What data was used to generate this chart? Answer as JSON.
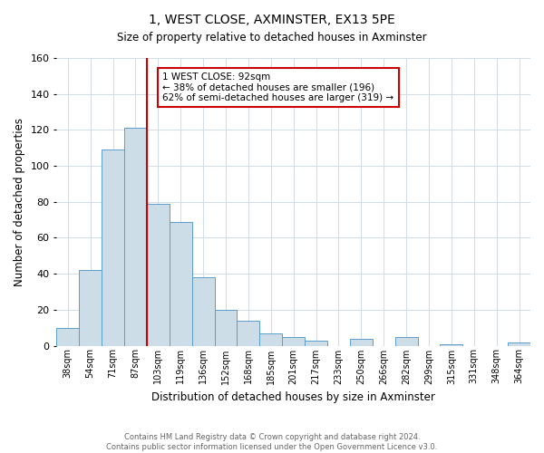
{
  "title": "1, WEST CLOSE, AXMINSTER, EX13 5PE",
  "subtitle": "Size of property relative to detached houses in Axminster",
  "xlabel": "Distribution of detached houses by size in Axminster",
  "ylabel": "Number of detached properties",
  "bar_labels": [
    "38sqm",
    "54sqm",
    "71sqm",
    "87sqm",
    "103sqm",
    "119sqm",
    "136sqm",
    "152sqm",
    "168sqm",
    "185sqm",
    "201sqm",
    "217sqm",
    "233sqm",
    "250sqm",
    "266sqm",
    "282sqm",
    "299sqm",
    "315sqm",
    "331sqm",
    "348sqm",
    "364sqm"
  ],
  "bar_values": [
    10,
    42,
    109,
    121,
    79,
    69,
    38,
    20,
    14,
    7,
    5,
    3,
    0,
    4,
    0,
    5,
    0,
    1,
    0,
    0,
    2
  ],
  "bar_color": "#ccdde8",
  "bar_edge_color": "#5a9ec9",
  "ylim": [
    0,
    160
  ],
  "yticks": [
    0,
    20,
    40,
    60,
    80,
    100,
    120,
    140,
    160
  ],
  "vline_x_idx": 3,
  "vline_color": "#cc0000",
  "annotation_title": "1 WEST CLOSE: 92sqm",
  "annotation_line1": "← 38% of detached houses are smaller (196)",
  "annotation_line2": "62% of semi-detached houses are larger (319) →",
  "annotation_box_color": "#ffffff",
  "annotation_box_edge_color": "#cc0000",
  "footer_line1": "Contains HM Land Registry data © Crown copyright and database right 2024.",
  "footer_line2": "Contains public sector information licensed under the Open Government Licence v3.0.",
  "background_color": "#ffffff",
  "grid_color": "#d4dde6",
  "figwidth": 6.0,
  "figheight": 5.0,
  "dpi": 100
}
